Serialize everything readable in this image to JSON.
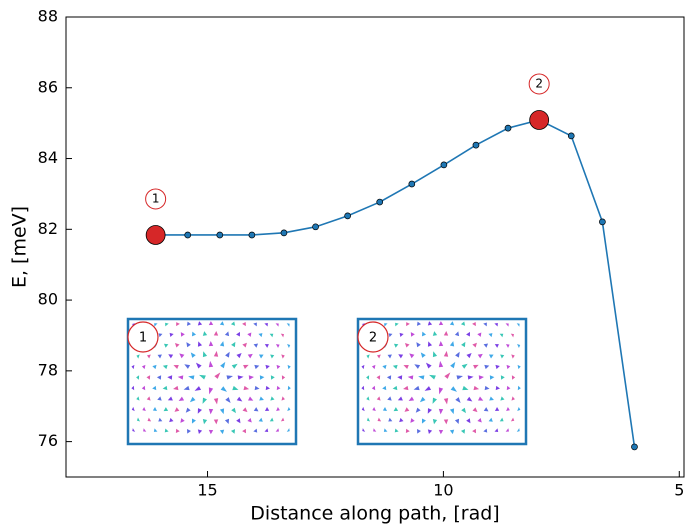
{
  "chart_data": {
    "type": "line",
    "x_label": "Distance along path, [rad]",
    "y_label": "E, [meV]",
    "x": [
      16.1,
      15.42,
      14.74,
      14.06,
      13.38,
      12.71,
      12.03,
      11.35,
      10.67,
      9.99,
      9.31,
      8.63,
      7.97,
      7.29,
      6.63,
      5.95
    ],
    "series": [
      {
        "color": "#1f77b4",
        "values": [
          81.84,
          81.84,
          81.84,
          81.84,
          81.9,
          82.07,
          82.38,
          82.77,
          83.28,
          83.82,
          84.38,
          84.86,
          85.09,
          84.64,
          82.21,
          75.85
        ],
        "point_labels": [
          "1",
          null,
          null,
          null,
          null,
          null,
          null,
          null,
          null,
          null,
          null,
          null,
          "2",
          null,
          null,
          null
        ],
        "highlight_color": "#d62728"
      }
    ],
    "xlim": [
      18,
      4.9
    ],
    "xticks": [
      15,
      10,
      5
    ],
    "ylim": [
      75,
      88
    ],
    "yticks": [
      76,
      78,
      80,
      82,
      84,
      86,
      88
    ],
    "insets": [
      {
        "label": "1"
      },
      {
        "label": "2"
      }
    ]
  }
}
